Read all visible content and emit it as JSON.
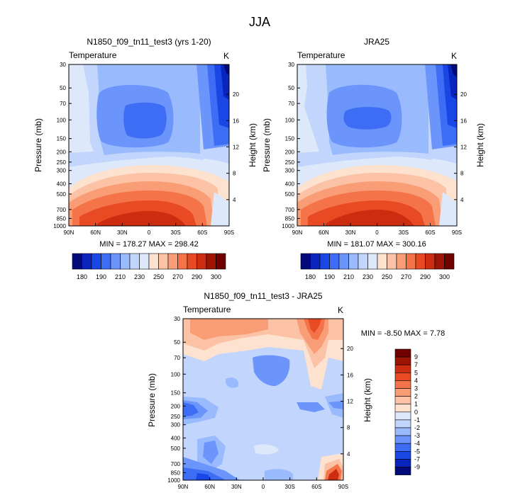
{
  "page_title": "JJA",
  "chart_data": [
    {
      "type": "heatmap",
      "title": "N1850_f09_tn11_test3 (yrs 1-20)",
      "field_label": "Temperature",
      "units_label": "K",
      "ylabel": "Pressure (mb)",
      "ylabel_right": "Height (km)",
      "x_ticks": [
        "90N",
        "60N",
        "30N",
        "0",
        "30S",
        "60S",
        "90S"
      ],
      "y_ticks": [
        "30",
        "50",
        "70",
        "100",
        "150",
        "200",
        "250",
        "300",
        "400",
        "500",
        "700",
        "850",
        "1000"
      ],
      "height_ticks": [
        "20",
        "16",
        "12",
        "8",
        "4"
      ],
      "stats_text": "MIN = 178.27  MAX = 298.42",
      "min": 178.27,
      "max": 298.42
    },
    {
      "type": "heatmap",
      "title": "JRA25",
      "field_label": "Temperature",
      "units_label": "K",
      "ylabel": "Pressure (mb)",
      "ylabel_right": "Height (km)",
      "x_ticks": [
        "90N",
        "60N",
        "30N",
        "0",
        "30S",
        "60S",
        "90S"
      ],
      "y_ticks": [
        "30",
        "50",
        "70",
        "100",
        "150",
        "200",
        "250",
        "300",
        "400",
        "500",
        "700",
        "850",
        "1000"
      ],
      "height_ticks": [
        "20",
        "16",
        "12",
        "8",
        "4"
      ],
      "stats_text": "MIN = 181.07  MAX = 300.16",
      "min": 181.07,
      "max": 300.16
    },
    {
      "type": "heatmap",
      "title": "N1850_f09_tn11_test3 - JRA25",
      "field_label": "Temperature",
      "units_label": "K",
      "ylabel": "Pressure (mb)",
      "ylabel_right": "Height (km)",
      "x_ticks": [
        "90N",
        "60N",
        "30N",
        "0",
        "30S",
        "60S",
        "90S"
      ],
      "y_ticks": [
        "30",
        "50",
        "70",
        "100",
        "150",
        "200",
        "250",
        "300",
        "400",
        "500",
        "700",
        "850",
        "1000"
      ],
      "height_ticks": [
        "20",
        "16",
        "12",
        "8",
        "4"
      ],
      "stats_text": "MIN =  -8.50  MAX =   7.78",
      "min": -8.5,
      "max": 7.78
    }
  ],
  "colorbar_abs": {
    "labels": [
      "180",
      "190",
      "210",
      "230",
      "250",
      "270",
      "290",
      "300"
    ],
    "colors": [
      "#000a7a",
      "#0a25bd",
      "#1b46e6",
      "#3d6df4",
      "#6c95fb",
      "#9abafe",
      "#c2d6fd",
      "#dde9fb",
      "#fde2d0",
      "#fcc2a5",
      "#f99d77",
      "#f47348",
      "#e84a24",
      "#cc2c0f",
      "#9e1405",
      "#700000"
    ]
  },
  "colorbar_diff": {
    "labels": [
      "9",
      "7",
      "5",
      "4",
      "3",
      "2",
      "1",
      "0",
      "-1",
      "-2",
      "-3",
      "-4",
      "-5",
      "-7",
      "-9"
    ],
    "colors": [
      "#700000",
      "#9e1405",
      "#cc2c0f",
      "#e84a24",
      "#f47348",
      "#f99d77",
      "#fcc2a5",
      "#fde2d0",
      "#dde9fb",
      "#c2d6fd",
      "#9abafe",
      "#6c95fb",
      "#3d6df4",
      "#1b46e6",
      "#0a25bd",
      "#000a7a"
    ]
  }
}
